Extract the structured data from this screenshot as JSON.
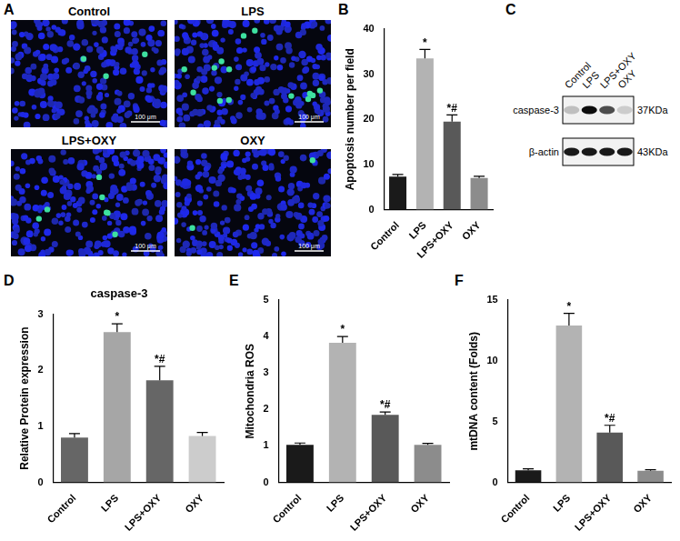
{
  "figure_panels": {
    "A": {
      "letter": "A",
      "scale_bar": "100 μm",
      "images": [
        {
          "title": "Control",
          "green_cells": 3
        },
        {
          "title": "LPS",
          "green_cells": 14
        },
        {
          "title": "LPS+OXY",
          "green_cells": 7
        },
        {
          "title": "OXY",
          "green_cells": 2
        }
      ]
    },
    "C": {
      "letter": "C",
      "lanes": [
        "Control",
        "LPS",
        "LPS+OXY",
        "OXY"
      ],
      "blots": [
        {
          "protein": "caspase-3",
          "size": "37KDa",
          "band_intensity": [
            0.25,
            0.95,
            0.7,
            0.2
          ]
        },
        {
          "protein": "β-actin",
          "size": "43KDa",
          "band_intensity": [
            0.9,
            0.9,
            0.9,
            0.9
          ]
        }
      ]
    }
  },
  "chart_data": [
    {
      "panel": "B",
      "type": "bar",
      "y_label": "Apoptosis number per field",
      "categories": [
        "Control",
        "LPS",
        "LPS+OXY",
        "OXY"
      ],
      "values": [
        7.3,
        33.5,
        19.5,
        7.0
      ],
      "errors": [
        0.5,
        2.0,
        1.5,
        0.4
      ],
      "significance": [
        null,
        "*",
        "*#",
        null
      ],
      "colors": [
        "#1a1a1a",
        "#b3b3b3",
        "#595959",
        "#8c8c8c"
      ],
      "ylim": [
        0,
        40
      ],
      "yticks": [
        0,
        10,
        20,
        30,
        40
      ],
      "grid": false
    },
    {
      "panel": "D",
      "type": "bar",
      "title": "caspase-3",
      "y_label": "Relative Protein expression",
      "categories": [
        "Control",
        "LPS",
        "LPS+OXY",
        "OXY"
      ],
      "values": [
        0.8,
        2.68,
        1.82,
        0.83
      ],
      "errors": [
        0.07,
        0.15,
        0.25,
        0.06
      ],
      "significance": [
        null,
        "*",
        "*#",
        null
      ],
      "colors": [
        "#666666",
        "#a6a6a6",
        "#666666",
        "#cccccc"
      ],
      "ylim": [
        0,
        3
      ],
      "yticks": [
        0,
        1,
        2,
        3
      ],
      "grid": false
    },
    {
      "panel": "E",
      "type": "bar",
      "y_label": "Mitochondria ROS",
      "categories": [
        "Control",
        "LPS",
        "LPS+OXY",
        "OXY"
      ],
      "values": [
        1.03,
        3.83,
        1.85,
        1.03
      ],
      "errors": [
        0.05,
        0.17,
        0.08,
        0.04
      ],
      "significance": [
        null,
        "*",
        "*#",
        null
      ],
      "colors": [
        "#1a1a1a",
        "#b3b3b3",
        "#595959",
        "#8c8c8c"
      ],
      "ylim": [
        0,
        5
      ],
      "yticks": [
        0,
        1,
        2,
        3,
        4,
        5
      ],
      "grid": false
    },
    {
      "panel": "F",
      "type": "bar",
      "y_label": "mtDNA content (Folds)",
      "categories": [
        "Control",
        "LPS",
        "LPS+OXY",
        "OXY"
      ],
      "values": [
        1.0,
        12.9,
        4.1,
        0.95
      ],
      "errors": [
        0.12,
        1.0,
        0.6,
        0.1
      ],
      "significance": [
        null,
        "*",
        "*#",
        null
      ],
      "colors": [
        "#1a1a1a",
        "#b3b3b3",
        "#595959",
        "#8c8c8c"
      ],
      "ylim": [
        0,
        15
      ],
      "yticks": [
        0,
        5,
        10,
        15
      ],
      "grid": false
    }
  ]
}
